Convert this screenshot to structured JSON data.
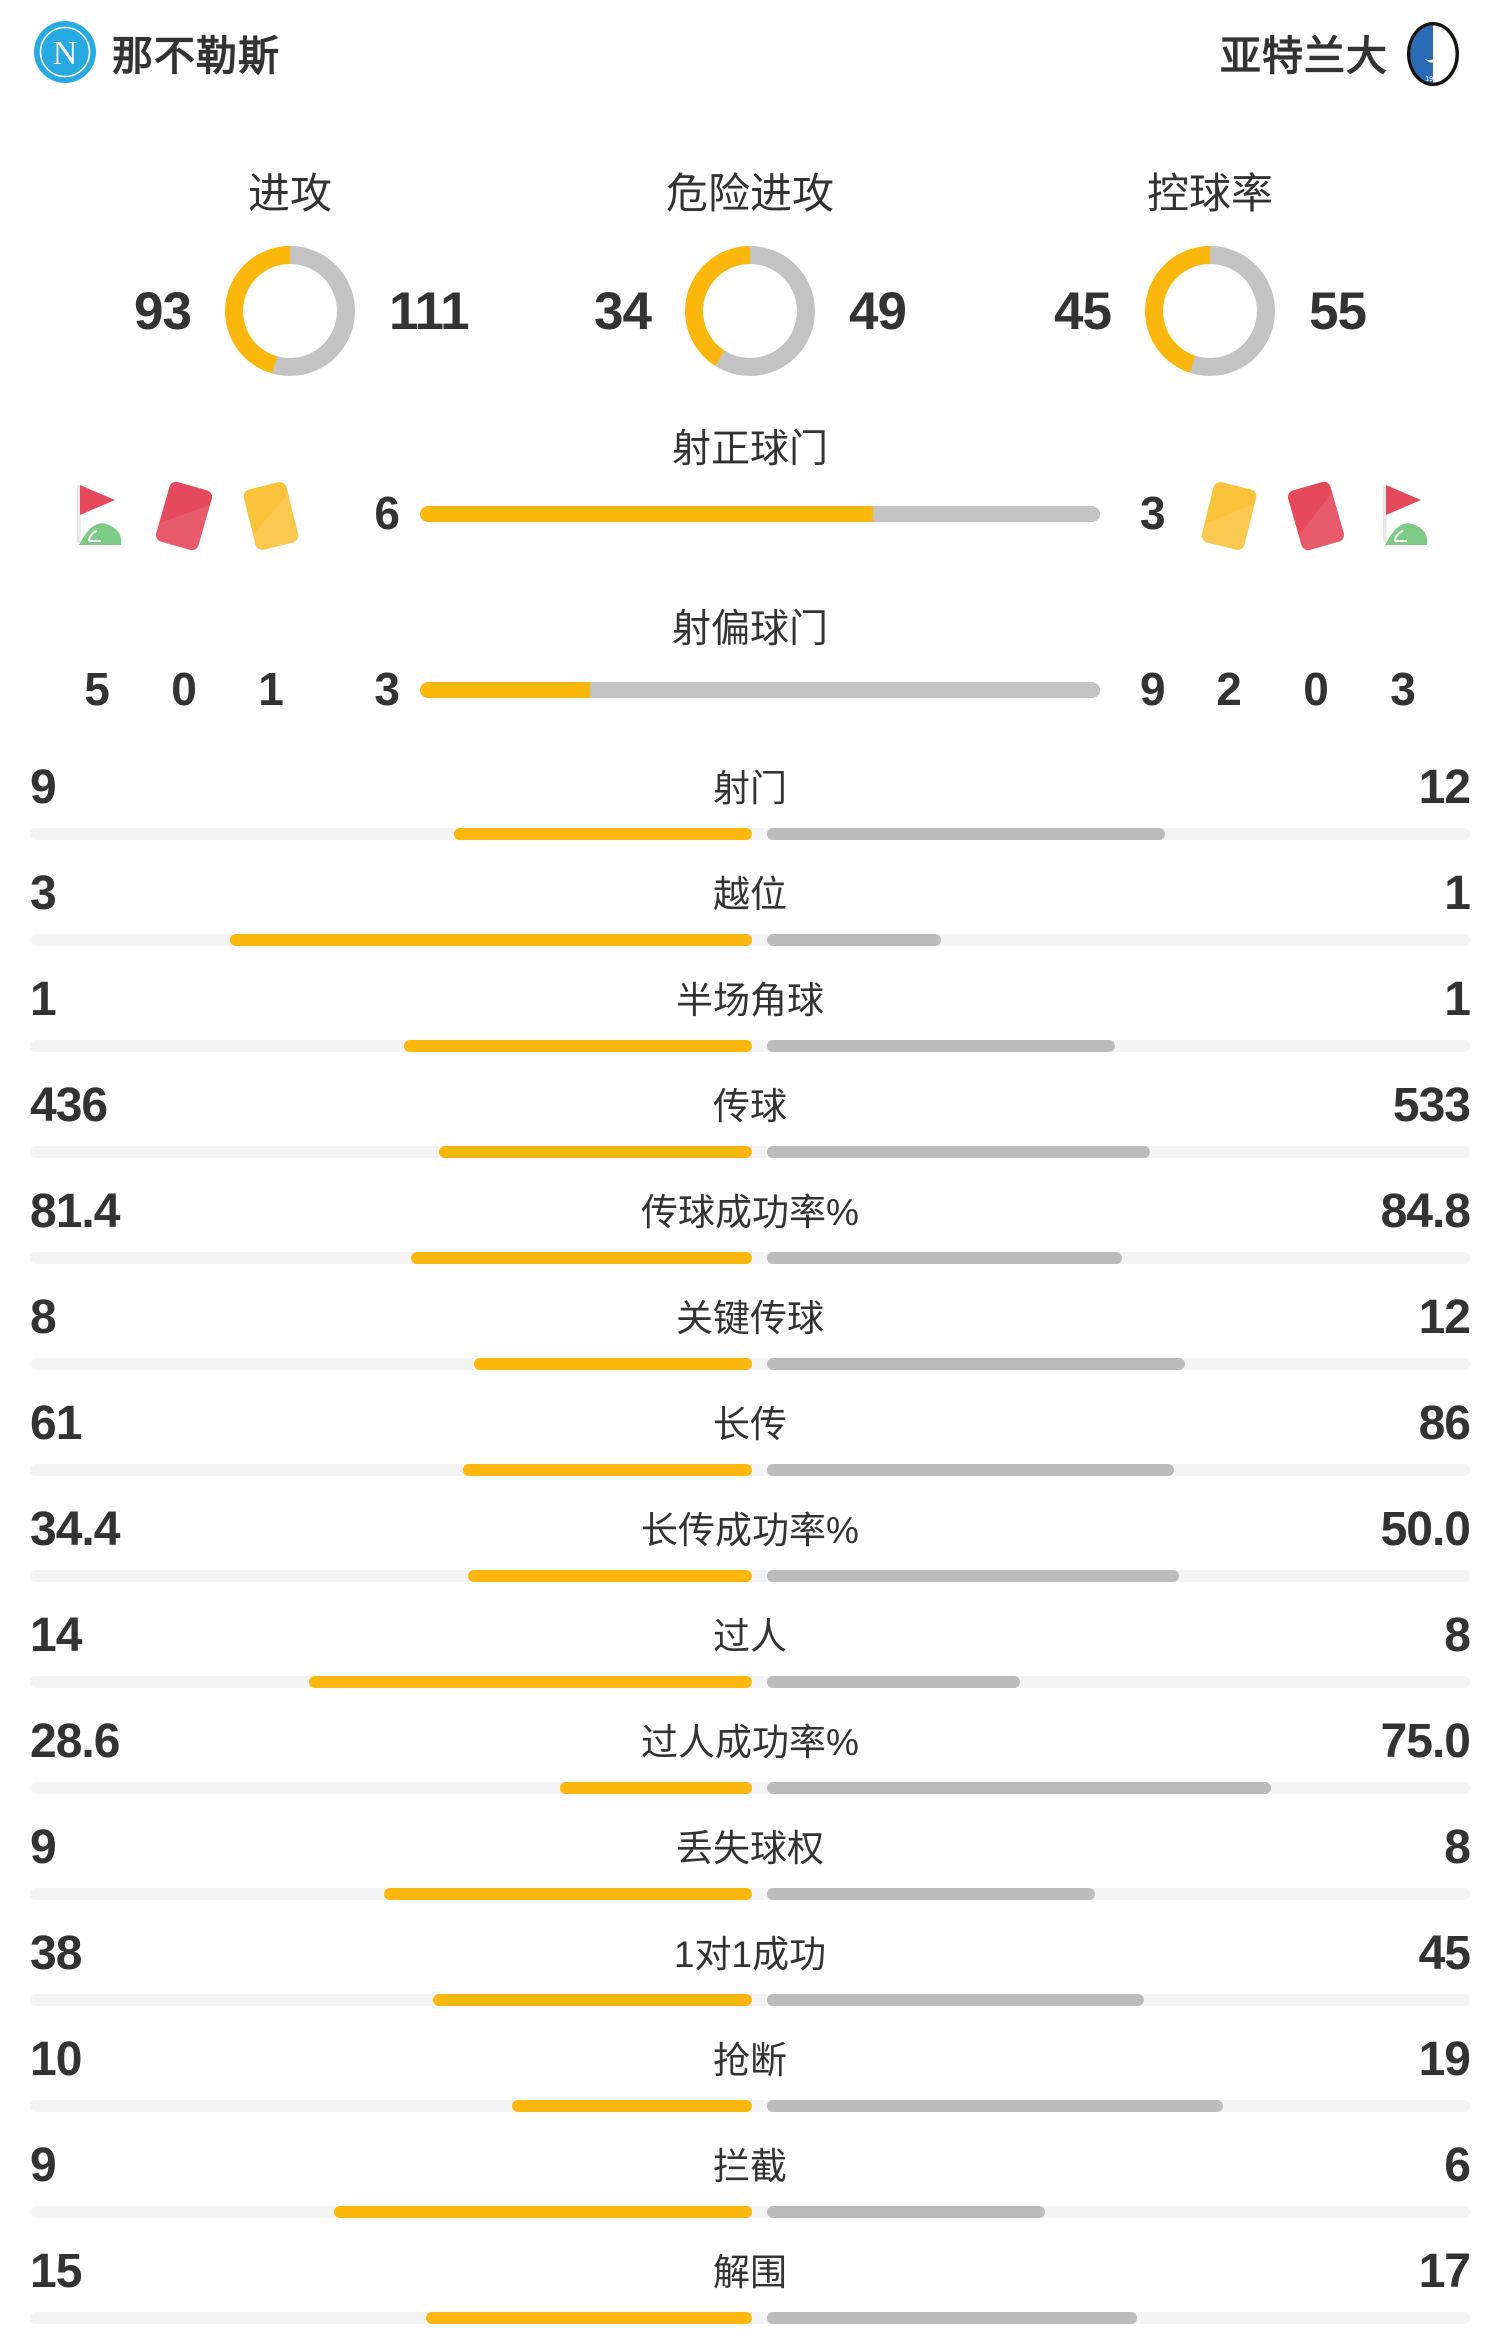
{
  "header": {
    "home": {
      "name": "那不勒斯",
      "logo": "napoli-crest"
    },
    "away": {
      "name": "亚特兰大",
      "logo": "atalanta-crest"
    }
  },
  "colors": {
    "accent_yellow": "#FBB70C",
    "donut_gray": "#C3C3C3",
    "bar_gray": "#BCBCBC",
    "track_gray": "#F4F4F4",
    "text": "#333333",
    "napoli_blue": "#27AAE1",
    "card_red": "#E5495C",
    "card_yellow": "#FBC33C",
    "flag_green": "#7CCC88"
  },
  "chart_data": {
    "type": "bar",
    "title": "Match statistics 那不勒斯 vs 亚特兰大",
    "donuts": [
      {
        "title": "进攻",
        "home": 93,
        "away": 111
      },
      {
        "title": "危险进攻",
        "home": 34,
        "away": 49
      },
      {
        "title": "控球率",
        "home": 45,
        "away": 55
      }
    ],
    "categories": [
      "射门",
      "越位",
      "半场角球",
      "传球",
      "传球成功率%",
      "关键传球",
      "长传",
      "长传成功率%",
      "过人",
      "过人成功率%",
      "丢失球权",
      "1对1成功",
      "抢断",
      "拦截",
      "解围"
    ],
    "series": [
      {
        "name": "那不勒斯",
        "values": [
          9,
          3,
          1,
          436,
          81.4,
          8,
          61,
          34.4,
          14,
          28.6,
          9,
          38,
          10,
          9,
          15
        ]
      },
      {
        "name": "亚特兰大",
        "values": [
          12,
          1,
          1,
          533,
          84.8,
          12,
          86,
          50.0,
          8,
          75.0,
          8,
          45,
          19,
          6,
          17
        ]
      }
    ]
  },
  "donuts": [
    {
      "title": "进攻",
      "home": "93",
      "away": "111"
    },
    {
      "title": "危险进攻",
      "home": "34",
      "away": "49"
    },
    {
      "title": "控球率",
      "home": "45",
      "away": "55"
    }
  ],
  "shots": {
    "on_target": {
      "title": "射正球门",
      "home": "6",
      "away": "3"
    },
    "off_target": {
      "title": "射偏球门",
      "home": "3",
      "away": "9"
    },
    "home_icons": [
      {
        "icon": "corner-flag-icon",
        "count": "5"
      },
      {
        "icon": "red-card-icon",
        "count": "0"
      },
      {
        "icon": "yellow-card-icon",
        "count": "1"
      }
    ],
    "away_icons": [
      {
        "icon": "yellow-card-icon",
        "count": "2"
      },
      {
        "icon": "red-card-icon",
        "count": "0"
      },
      {
        "icon": "corner-flag-icon",
        "count": "3"
      }
    ]
  },
  "stats": {
    "rows": [
      {
        "label": "射门",
        "home": "9",
        "away": "12"
      },
      {
        "label": "越位",
        "home": "3",
        "away": "1"
      },
      {
        "label": "半场角球",
        "home": "1",
        "away": "1"
      },
      {
        "label": "传球",
        "home": "436",
        "away": "533"
      },
      {
        "label": "传球成功率%",
        "home": "81.4",
        "away": "84.8"
      },
      {
        "label": "关键传球",
        "home": "8",
        "away": "12"
      },
      {
        "label": "长传",
        "home": "61",
        "away": "86"
      },
      {
        "label": "长传成功率%",
        "home": "34.4",
        "away": "50.0"
      },
      {
        "label": "过人",
        "home": "14",
        "away": "8"
      },
      {
        "label": "过人成功率%",
        "home": "28.6",
        "away": "75.0"
      },
      {
        "label": "丢失球权",
        "home": "9",
        "away": "8"
      },
      {
        "label": "1对1成功",
        "home": "38",
        "away": "45"
      },
      {
        "label": "抢断",
        "home": "10",
        "away": "19"
      },
      {
        "label": "拦截",
        "home": "9",
        "away": "6"
      },
      {
        "label": "解围",
        "home": "15",
        "away": "17"
      }
    ]
  }
}
